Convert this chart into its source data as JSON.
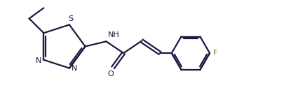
{
  "bg_color": "#ffffff",
  "line_color": "#1a1a3e",
  "label_color": "#1a1a3e",
  "label_color_f": "#8B6914",
  "lw": 1.6,
  "figsize": [
    4.25,
    1.49
  ],
  "dpi": 100,
  "xlim": [
    0,
    10.5
  ],
  "ylim": [
    0,
    3.7
  ]
}
